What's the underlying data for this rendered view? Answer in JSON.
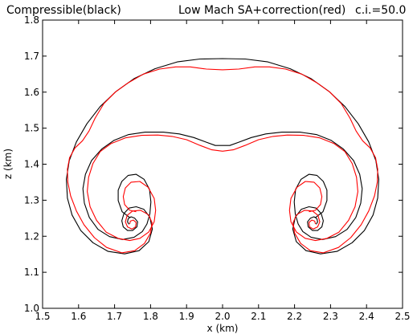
{
  "chart_data": {
    "type": "contour",
    "title_left": "Compressible(black)",
    "title_center": "Low Mach SA+correction(red)",
    "title_right": "c.i.=50.0",
    "xlabel": "x (km)",
    "ylabel": "z (km)",
    "xlim": [
      1.5,
      2.5
    ],
    "ylim": [
      1.0,
      1.8
    ],
    "xticks": [
      "1.5",
      "1.6",
      "1.7",
      "1.8",
      "1.9",
      "2.0",
      "2.1",
      "2.2",
      "2.3",
      "2.4",
      "2.5"
    ],
    "yticks": [
      "1.0",
      "1.1",
      "1.2",
      "1.3",
      "1.4",
      "1.5",
      "1.6",
      "1.7",
      "1.8"
    ],
    "grid": false,
    "series": [
      {
        "name": "Compressible",
        "color": "#000000",
        "points": [
          [
            2.0,
            1.693
          ],
          [
            2.063,
            1.692
          ],
          [
            2.126,
            1.684
          ],
          [
            2.188,
            1.665
          ],
          [
            2.245,
            1.638
          ],
          [
            2.296,
            1.602
          ],
          [
            2.34,
            1.56
          ],
          [
            2.377,
            1.512
          ],
          [
            2.406,
            1.462
          ],
          [
            2.426,
            1.41
          ],
          [
            2.434,
            1.358
          ],
          [
            2.431,
            1.306
          ],
          [
            2.418,
            1.259
          ],
          [
            2.394,
            1.216
          ],
          [
            2.36,
            1.182
          ],
          [
            2.318,
            1.158
          ],
          [
            2.272,
            1.151
          ],
          [
            2.232,
            1.16
          ],
          [
            2.205,
            1.185
          ],
          [
            2.195,
            1.22
          ],
          [
            2.202,
            1.253
          ],
          [
            2.219,
            1.275
          ],
          [
            2.24,
            1.282
          ],
          [
            2.26,
            1.278
          ],
          [
            2.274,
            1.263
          ],
          [
            2.28,
            1.243
          ],
          [
            2.276,
            1.226
          ],
          [
            2.264,
            1.216
          ],
          [
            2.25,
            1.216
          ],
          [
            2.238,
            1.226
          ],
          [
            2.236,
            1.24
          ],
          [
            2.244,
            1.25
          ],
          [
            2.254,
            1.254
          ],
          [
            2.262,
            1.249
          ],
          [
            2.264,
            1.24
          ],
          [
            2.26,
            1.233
          ],
          null,
          [
            2.0,
            1.693
          ],
          [
            1.937,
            1.692
          ],
          [
            1.874,
            1.684
          ],
          [
            1.812,
            1.665
          ],
          [
            1.755,
            1.638
          ],
          [
            1.704,
            1.602
          ],
          [
            1.66,
            1.56
          ],
          [
            1.623,
            1.512
          ],
          [
            1.594,
            1.462
          ],
          [
            1.574,
            1.41
          ],
          [
            1.566,
            1.358
          ],
          [
            1.569,
            1.306
          ],
          [
            1.582,
            1.259
          ],
          [
            1.606,
            1.216
          ],
          [
            1.64,
            1.182
          ],
          [
            1.682,
            1.158
          ],
          [
            1.728,
            1.151
          ],
          [
            1.768,
            1.16
          ],
          [
            1.795,
            1.185
          ],
          [
            1.805,
            1.22
          ],
          [
            1.798,
            1.253
          ],
          [
            1.781,
            1.275
          ],
          [
            1.76,
            1.282
          ],
          [
            1.74,
            1.278
          ],
          [
            1.726,
            1.263
          ],
          [
            1.72,
            1.243
          ],
          [
            1.724,
            1.226
          ],
          [
            1.736,
            1.216
          ],
          [
            1.75,
            1.216
          ],
          [
            1.762,
            1.226
          ],
          [
            1.764,
            1.24
          ],
          [
            1.756,
            1.25
          ],
          [
            1.746,
            1.254
          ],
          [
            1.738,
            1.249
          ],
          [
            1.736,
            1.24
          ],
          [
            1.74,
            1.233
          ],
          null,
          [
            2.0,
            1.452
          ],
          [
            2.02,
            1.452
          ],
          [
            2.045,
            1.461
          ],
          [
            2.08,
            1.474
          ],
          [
            2.12,
            1.484
          ],
          [
            2.165,
            1.489
          ],
          [
            2.215,
            1.489
          ],
          [
            2.262,
            1.482
          ],
          [
            2.302,
            1.466
          ],
          [
            2.336,
            1.442
          ],
          [
            2.364,
            1.41
          ],
          [
            2.381,
            1.372
          ],
          [
            2.388,
            1.332
          ],
          [
            2.384,
            1.292
          ],
          [
            2.37,
            1.252
          ],
          [
            2.346,
            1.219
          ],
          [
            2.314,
            1.199
          ],
          [
            2.278,
            1.191
          ],
          [
            2.246,
            1.197
          ],
          [
            2.223,
            1.213
          ],
          [
            2.21,
            1.234
          ],
          [
            2.202,
            1.262
          ],
          [
            2.199,
            1.295
          ],
          [
            2.203,
            1.33
          ],
          [
            2.218,
            1.358
          ],
          [
            2.24,
            1.372
          ],
          [
            2.262,
            1.369
          ],
          [
            2.28,
            1.352
          ],
          [
            2.29,
            1.328
          ],
          [
            2.29,
            1.299
          ],
          [
            2.279,
            1.268
          ],
          [
            2.258,
            1.252
          ],
          null,
          [
            2.0,
            1.452
          ],
          [
            1.98,
            1.452
          ],
          [
            1.955,
            1.461
          ],
          [
            1.92,
            1.474
          ],
          [
            1.88,
            1.484
          ],
          [
            1.835,
            1.489
          ],
          [
            1.785,
            1.489
          ],
          [
            1.738,
            1.482
          ],
          [
            1.698,
            1.466
          ],
          [
            1.664,
            1.442
          ],
          [
            1.636,
            1.41
          ],
          [
            1.619,
            1.372
          ],
          [
            1.612,
            1.332
          ],
          [
            1.616,
            1.292
          ],
          [
            1.63,
            1.252
          ],
          [
            1.654,
            1.219
          ],
          [
            1.686,
            1.199
          ],
          [
            1.722,
            1.191
          ],
          [
            1.754,
            1.197
          ],
          [
            1.777,
            1.213
          ],
          [
            1.79,
            1.234
          ],
          [
            1.798,
            1.262
          ],
          [
            1.801,
            1.295
          ],
          [
            1.797,
            1.33
          ],
          [
            1.782,
            1.358
          ],
          [
            1.76,
            1.372
          ],
          [
            1.738,
            1.369
          ],
          [
            1.72,
            1.352
          ],
          [
            1.71,
            1.328
          ],
          [
            1.71,
            1.299
          ],
          [
            1.721,
            1.268
          ],
          [
            1.742,
            1.252
          ]
        ]
      },
      {
        "name": "Low Mach SA+correction",
        "color": "#ff0000",
        "points": [
          [
            2.0,
            1.662
          ],
          [
            2.045,
            1.664
          ],
          [
            2.09,
            1.67
          ],
          [
            2.13,
            1.67
          ],
          [
            2.175,
            1.664
          ],
          [
            2.22,
            1.65
          ],
          [
            2.262,
            1.626
          ],
          [
            2.298,
            1.6
          ],
          [
            2.33,
            1.568
          ],
          [
            2.354,
            1.528
          ],
          [
            2.371,
            1.492
          ],
          [
            2.389,
            1.465
          ],
          [
            2.41,
            1.445
          ],
          [
            2.425,
            1.418
          ],
          [
            2.431,
            1.386
          ],
          [
            2.43,
            1.35
          ],
          [
            2.422,
            1.312
          ],
          [
            2.406,
            1.27
          ],
          [
            2.385,
            1.232
          ],
          [
            2.356,
            1.196
          ],
          [
            2.322,
            1.169
          ],
          [
            2.28,
            1.154
          ],
          [
            2.244,
            1.16
          ],
          [
            2.217,
            1.18
          ],
          [
            2.2,
            1.209
          ],
          [
            2.196,
            1.238
          ],
          [
            2.206,
            1.26
          ],
          [
            2.228,
            1.272
          ],
          [
            2.25,
            1.27
          ],
          [
            2.265,
            1.258
          ],
          [
            2.27,
            1.24
          ],
          [
            2.264,
            1.226
          ],
          [
            2.252,
            1.22
          ],
          [
            2.242,
            1.226
          ],
          [
            2.24,
            1.238
          ],
          [
            2.248,
            1.245
          ],
          [
            2.256,
            1.242
          ],
          [
            2.258,
            1.234
          ],
          null,
          [
            2.0,
            1.662
          ],
          [
            1.955,
            1.664
          ],
          [
            1.91,
            1.67
          ],
          [
            1.87,
            1.67
          ],
          [
            1.825,
            1.664
          ],
          [
            1.78,
            1.65
          ],
          [
            1.738,
            1.626
          ],
          [
            1.702,
            1.6
          ],
          [
            1.67,
            1.568
          ],
          [
            1.646,
            1.528
          ],
          [
            1.629,
            1.492
          ],
          [
            1.611,
            1.465
          ],
          [
            1.59,
            1.445
          ],
          [
            1.575,
            1.418
          ],
          [
            1.569,
            1.386
          ],
          [
            1.57,
            1.35
          ],
          [
            1.578,
            1.312
          ],
          [
            1.594,
            1.27
          ],
          [
            1.615,
            1.232
          ],
          [
            1.644,
            1.196
          ],
          [
            1.678,
            1.169
          ],
          [
            1.72,
            1.154
          ],
          [
            1.756,
            1.16
          ],
          [
            1.783,
            1.18
          ],
          [
            1.8,
            1.209
          ],
          [
            1.804,
            1.238
          ],
          [
            1.794,
            1.26
          ],
          [
            1.772,
            1.272
          ],
          [
            1.75,
            1.27
          ],
          [
            1.735,
            1.258
          ],
          [
            1.73,
            1.24
          ],
          [
            1.736,
            1.226
          ],
          [
            1.748,
            1.22
          ],
          [
            1.758,
            1.226
          ],
          [
            1.76,
            1.238
          ],
          [
            1.752,
            1.245
          ],
          [
            1.744,
            1.242
          ],
          [
            1.742,
            1.234
          ],
          null,
          [
            2.0,
            1.436
          ],
          [
            2.03,
            1.44
          ],
          [
            2.062,
            1.452
          ],
          [
            2.1,
            1.468
          ],
          [
            2.14,
            1.477
          ],
          [
            2.18,
            1.481
          ],
          [
            2.225,
            1.48
          ],
          [
            2.27,
            1.473
          ],
          [
            2.31,
            1.457
          ],
          [
            2.34,
            1.435
          ],
          [
            2.36,
            1.402
          ],
          [
            2.372,
            1.364
          ],
          [
            2.376,
            1.324
          ],
          [
            2.368,
            1.282
          ],
          [
            2.35,
            1.244
          ],
          [
            2.323,
            1.211
          ],
          [
            2.29,
            1.194
          ],
          [
            2.258,
            1.188
          ],
          [
            2.23,
            1.194
          ],
          [
            2.205,
            1.212
          ],
          [
            2.19,
            1.24
          ],
          [
            2.186,
            1.272
          ],
          [
            2.19,
            1.305
          ],
          [
            2.207,
            1.336
          ],
          [
            2.23,
            1.352
          ],
          [
            2.254,
            1.35
          ],
          [
            2.27,
            1.334
          ],
          [
            2.276,
            1.31
          ],
          [
            2.272,
            1.288
          ],
          [
            2.258,
            1.272
          ],
          [
            2.24,
            1.268
          ],
          null,
          [
            2.0,
            1.436
          ],
          [
            1.97,
            1.44
          ],
          [
            1.938,
            1.452
          ],
          [
            1.9,
            1.468
          ],
          [
            1.86,
            1.477
          ],
          [
            1.82,
            1.481
          ],
          [
            1.775,
            1.48
          ],
          [
            1.73,
            1.473
          ],
          [
            1.69,
            1.457
          ],
          [
            1.66,
            1.435
          ],
          [
            1.64,
            1.402
          ],
          [
            1.628,
            1.364
          ],
          [
            1.624,
            1.324
          ],
          [
            1.632,
            1.282
          ],
          [
            1.65,
            1.244
          ],
          [
            1.677,
            1.211
          ],
          [
            1.71,
            1.194
          ],
          [
            1.742,
            1.188
          ],
          [
            1.77,
            1.194
          ],
          [
            1.795,
            1.212
          ],
          [
            1.81,
            1.24
          ],
          [
            1.814,
            1.272
          ],
          [
            1.81,
            1.305
          ],
          [
            1.793,
            1.336
          ],
          [
            1.77,
            1.352
          ],
          [
            1.746,
            1.35
          ],
          [
            1.73,
            1.334
          ],
          [
            1.724,
            1.31
          ],
          [
            1.728,
            1.288
          ],
          [
            1.742,
            1.272
          ],
          [
            1.76,
            1.268
          ]
        ]
      }
    ]
  }
}
